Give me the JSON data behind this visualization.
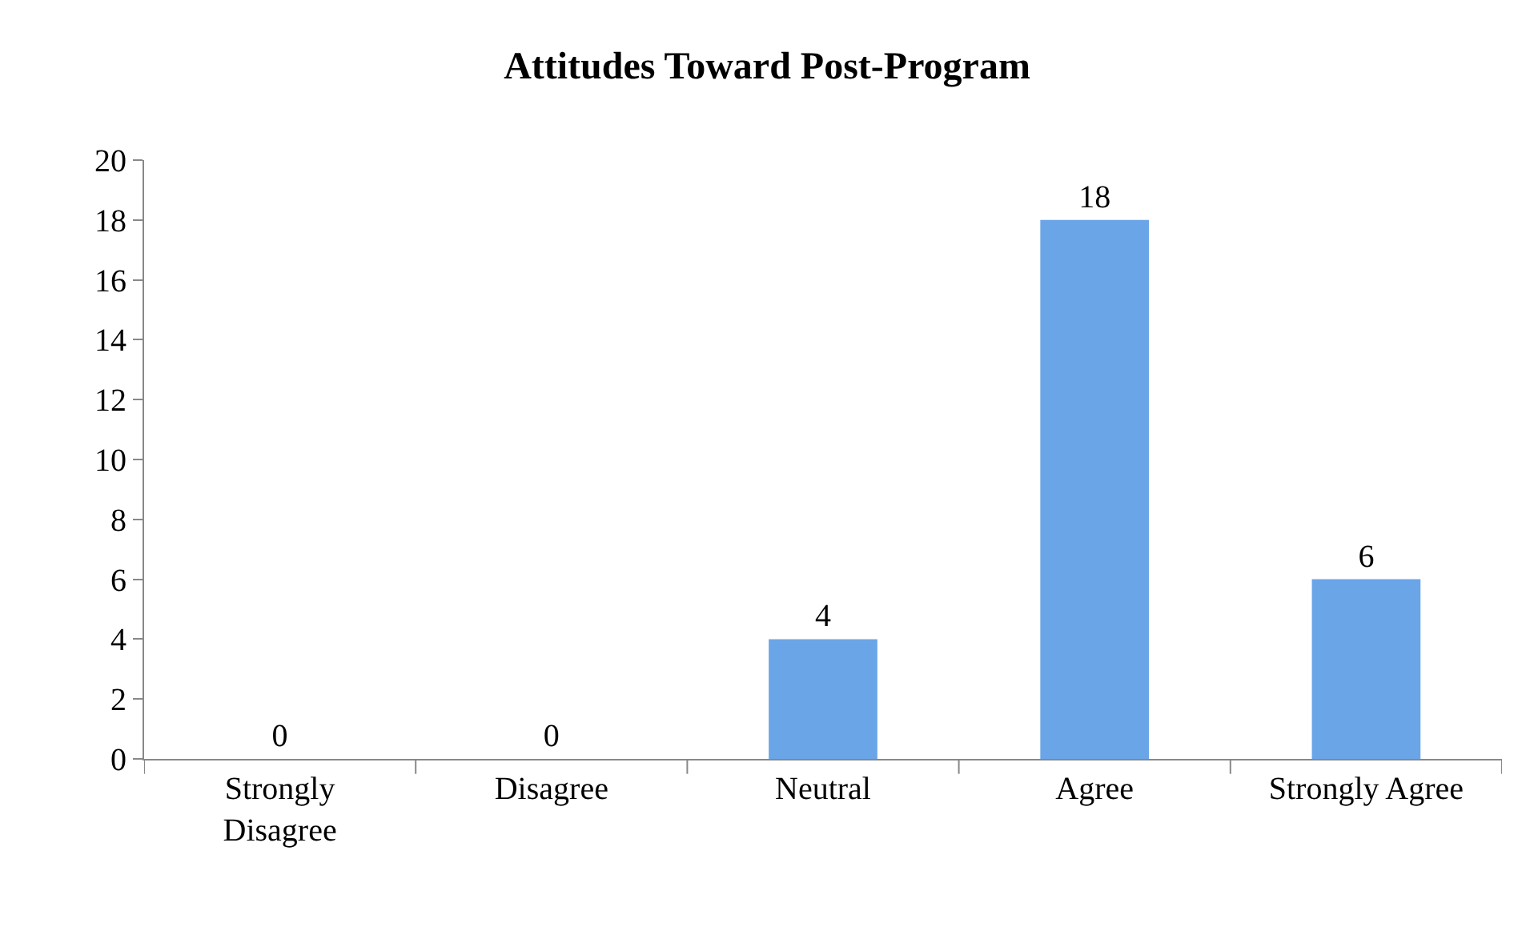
{
  "chart_data": {
    "type": "bar",
    "title": "Attitudes Toward Post-Program",
    "categories": [
      "Strongly Disagree",
      "Disagree",
      "Neutral",
      "Agree",
      "Strongly Agree"
    ],
    "values": [
      0,
      0,
      4,
      18,
      6
    ],
    "color": "#6aa5e8",
    "ylim": [
      0,
      20
    ],
    "yticks": [
      0,
      2,
      4,
      6,
      8,
      10,
      12,
      14,
      16,
      18,
      20
    ],
    "grid": false,
    "data_labels": true
  }
}
